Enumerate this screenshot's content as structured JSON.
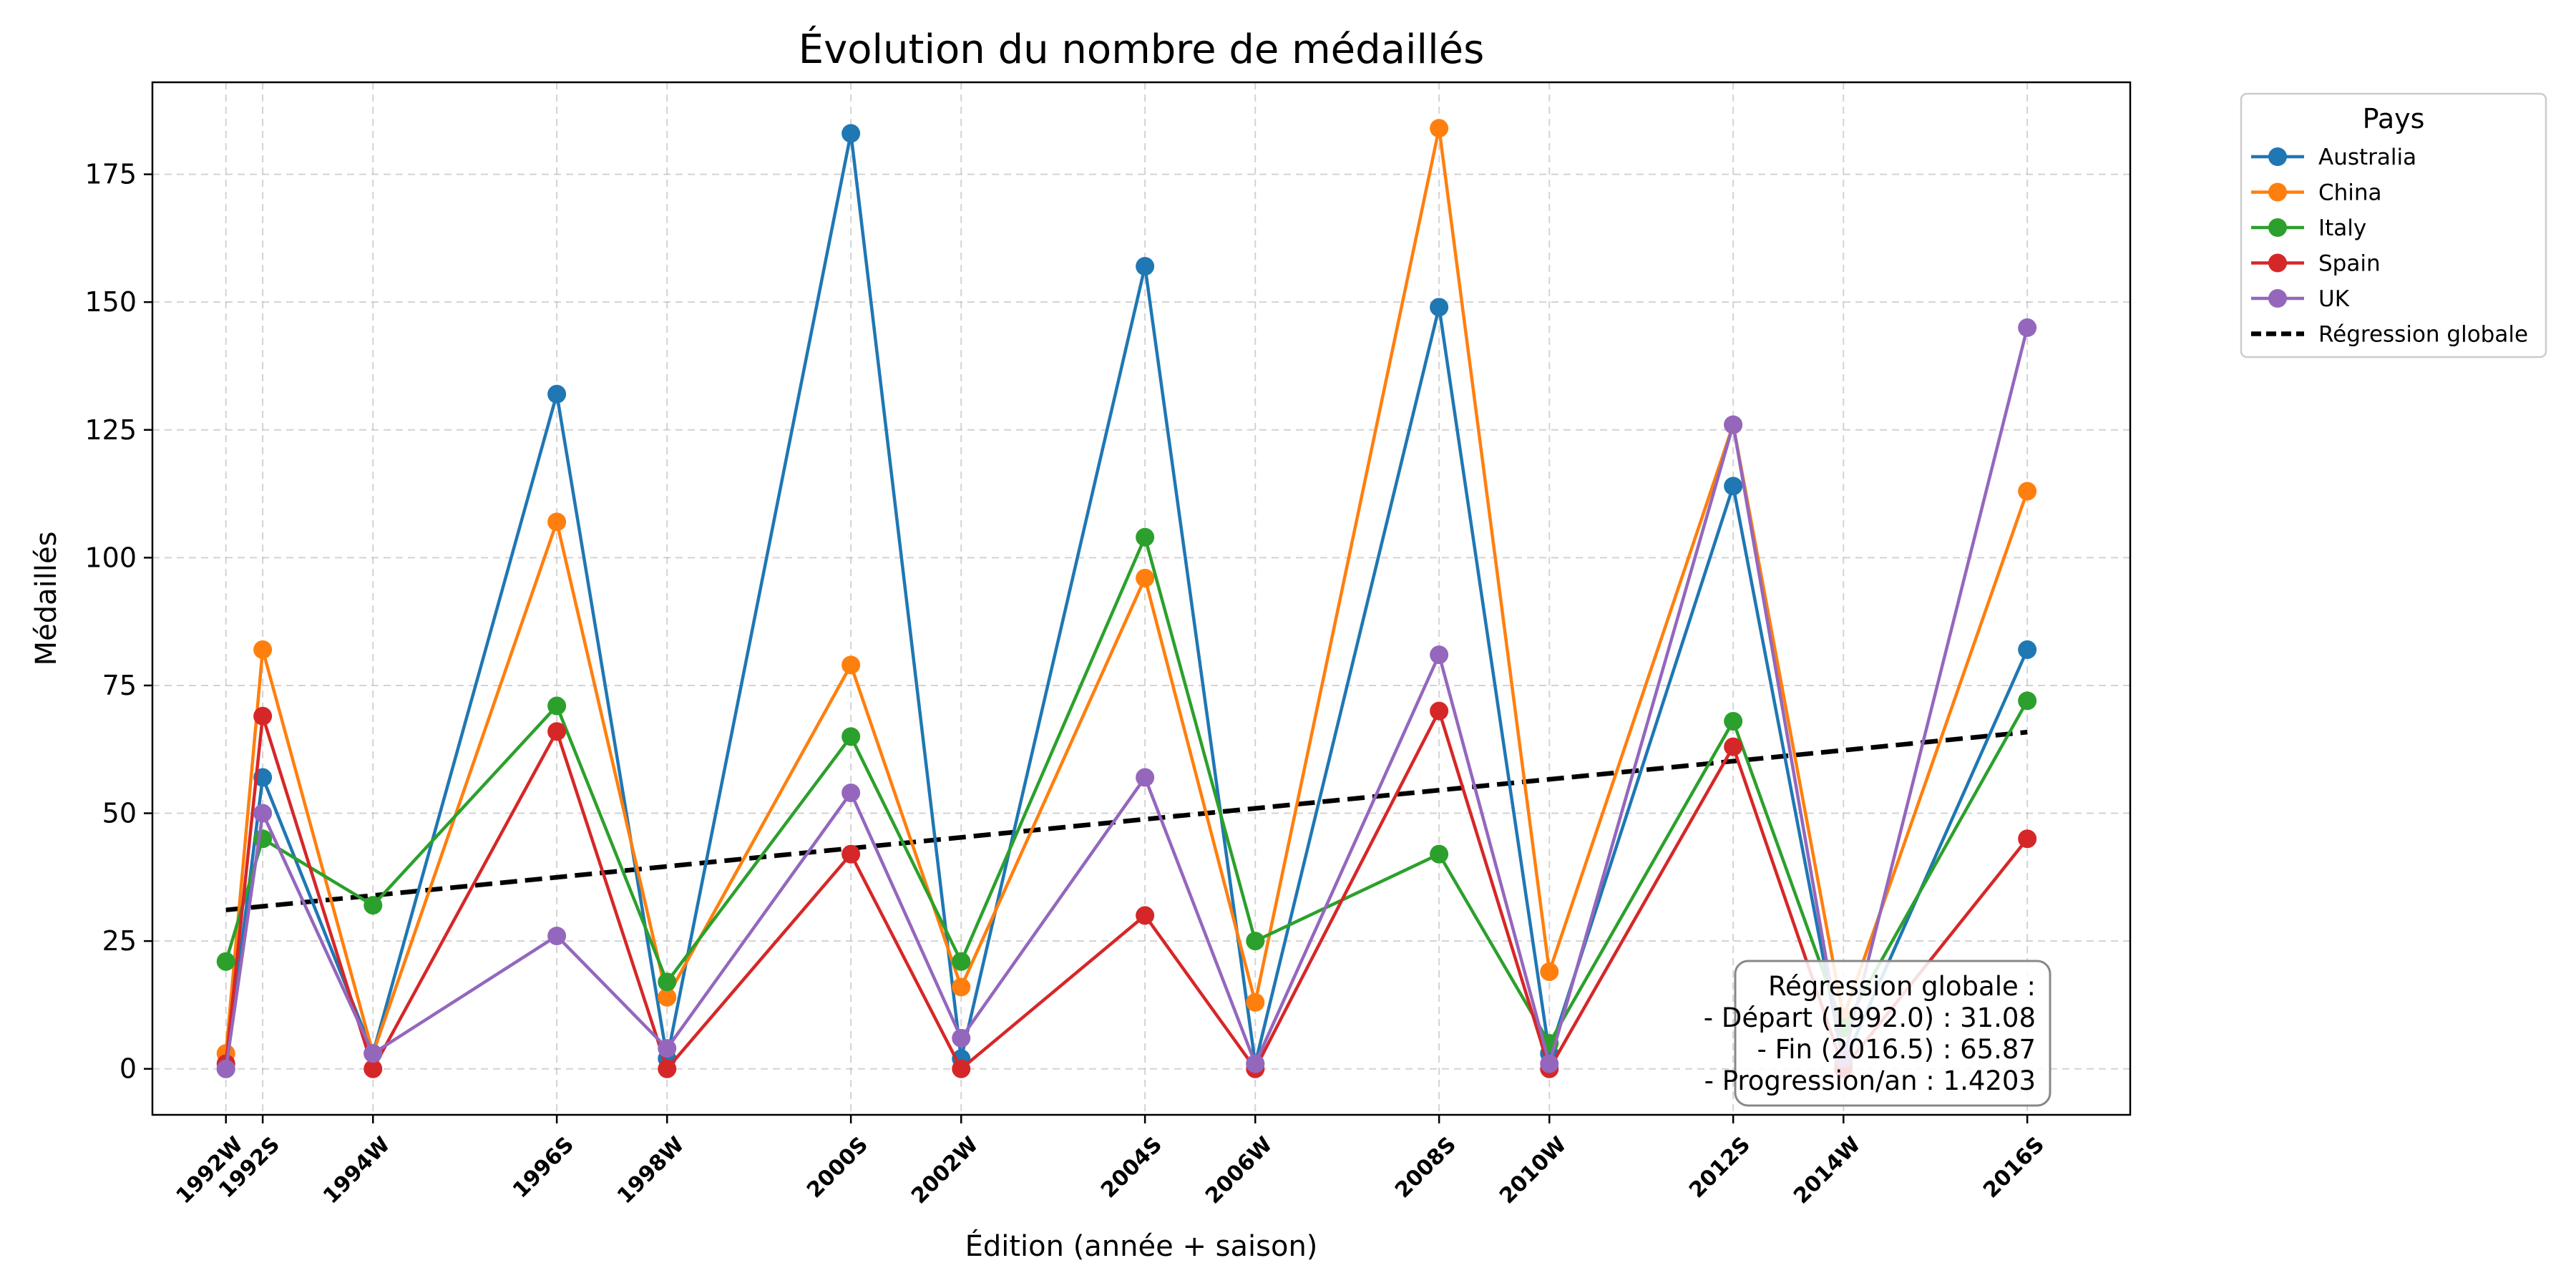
{
  "chart_data": {
    "type": "line",
    "title": "Évolution du nombre de médaillés",
    "xlabel": "Édition (année + saison)",
    "ylabel": "Médaillés",
    "x": [
      1992.0,
      1992.5,
      1994.0,
      1996.5,
      1998.0,
      2000.5,
      2002.0,
      2004.5,
      2006.0,
      2008.5,
      2010.0,
      2012.5,
      2014.0,
      2016.5
    ],
    "categories": [
      "1992W",
      "1992S",
      "1994W",
      "1996S",
      "1998W",
      "2000S",
      "2002W",
      "2004S",
      "2006W",
      "2008S",
      "2010W",
      "2012S",
      "2014W",
      "2016S"
    ],
    "yticks": [
      0,
      25,
      50,
      75,
      100,
      125,
      150,
      175
    ],
    "ylim": [
      -9,
      193
    ],
    "xlim": [
      1991.0,
      2017.9
    ],
    "grid": true,
    "legend": {
      "title": "Pays",
      "placement": "outside-top-right"
    },
    "series": [
      {
        "name": "Australia",
        "color": "#1f77b4",
        "values": [
          0,
          57,
          3,
          132,
          2,
          183,
          2,
          157,
          1,
          149,
          3,
          114,
          1,
          82
        ]
      },
      {
        "name": "China",
        "color": "#ff7f0e",
        "values": [
          3,
          82,
          3,
          107,
          14,
          79,
          16,
          96,
          13,
          184,
          19,
          126,
          10,
          113
        ]
      },
      {
        "name": "Italy",
        "color": "#2ca02c",
        "values": [
          21,
          45,
          32,
          71,
          17,
          65,
          21,
          104,
          25,
          42,
          5,
          68,
          8,
          72
        ]
      },
      {
        "name": "Spain",
        "color": "#d62728",
        "values": [
          1,
          69,
          0,
          66,
          0,
          42,
          0,
          30,
          0,
          70,
          0,
          63,
          0,
          45
        ]
      },
      {
        "name": "UK",
        "color": "#9467bd",
        "values": [
          0,
          50,
          3,
          26,
          4,
          54,
          6,
          57,
          1,
          81,
          1,
          126,
          2,
          145
        ]
      }
    ],
    "regression": {
      "name": "Régression globale",
      "color": "#000000",
      "start": {
        "x": 1992.0,
        "y": 31.08
      },
      "end": {
        "x": 2016.5,
        "y": 65.87
      }
    },
    "annotation": {
      "lines": [
        "Régression globale :",
        "- Départ (1992.0) : 31.08",
        "- Fin (2016.5) : 65.87",
        "- Progression/an : 1.4203"
      ],
      "placement": "bottom-right"
    }
  }
}
